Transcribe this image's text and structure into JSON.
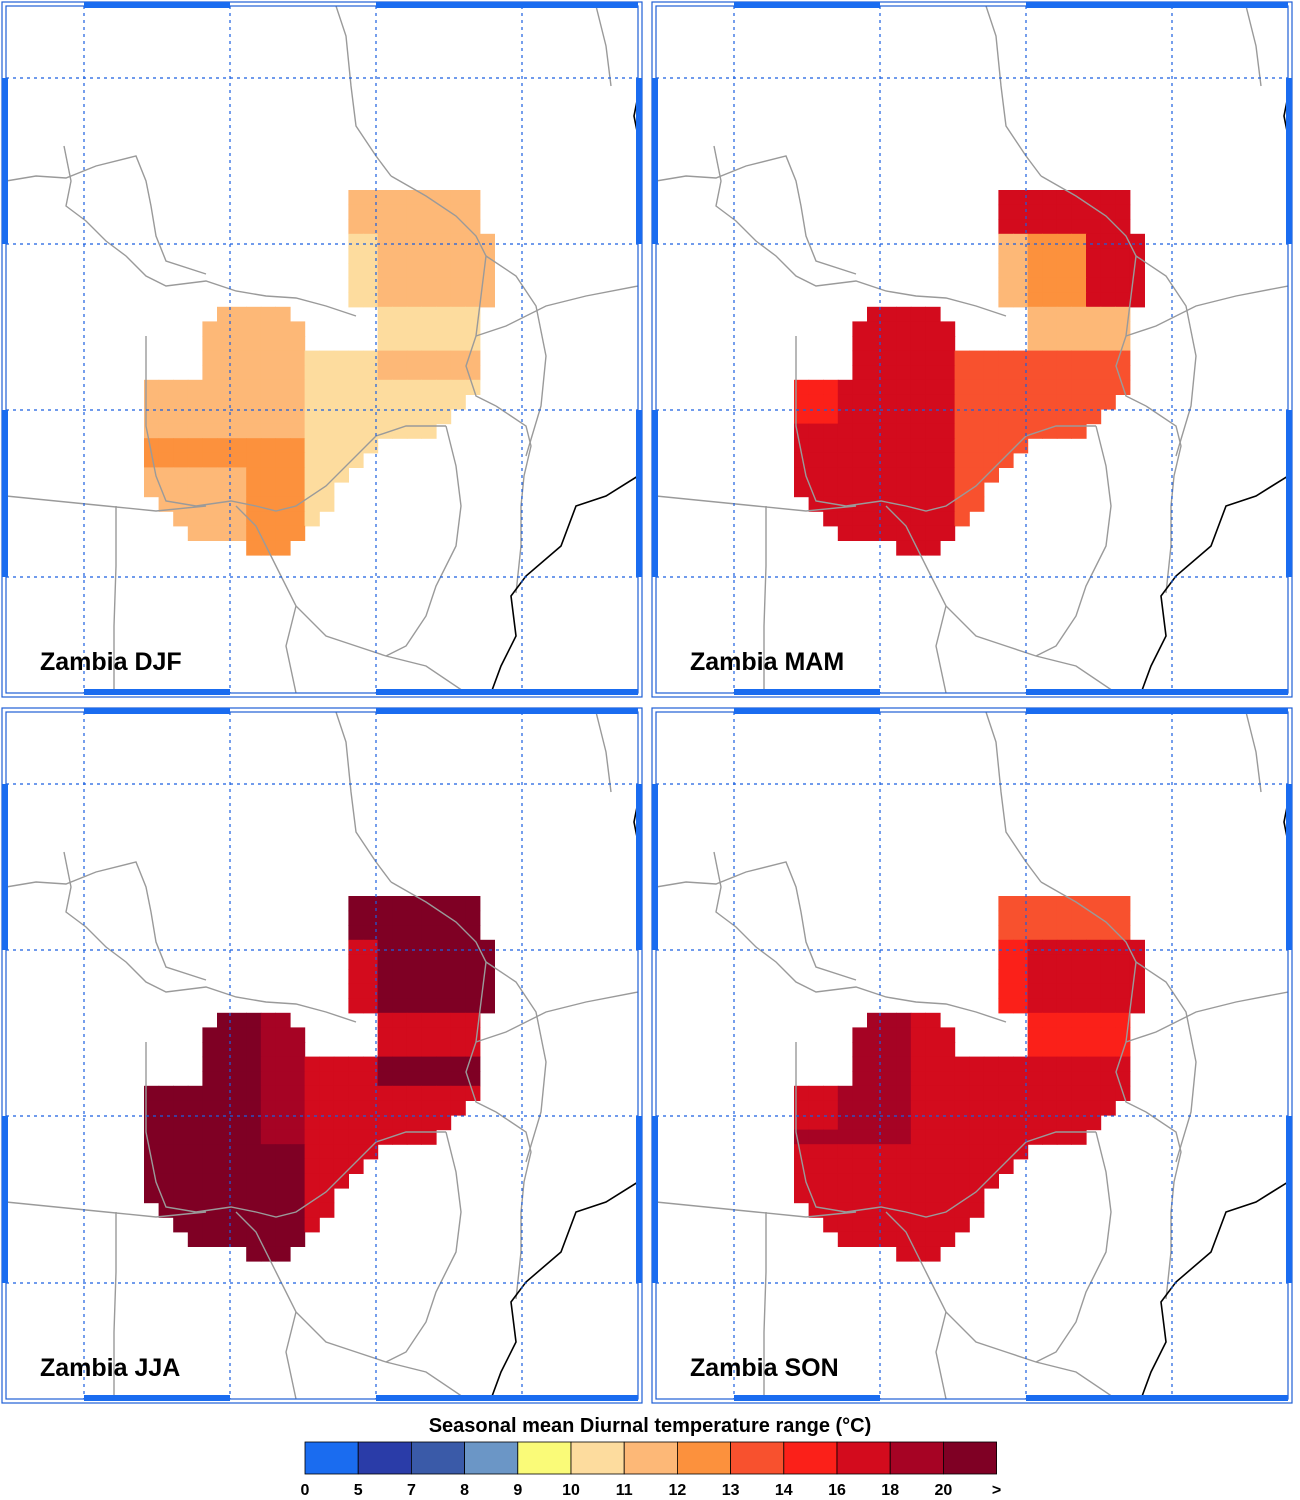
{
  "colors": {
    "frame_outer": "#1f5fd6",
    "frame_inner": "#1f5fd6",
    "frame_bar": "#1a6cf0",
    "gridline": "#1a5fe0",
    "border": "#9a9a9a",
    "coast": "#000000"
  },
  "panels": [
    {
      "id": "djf",
      "label": "Zambia DJF"
    },
    {
      "id": "mam",
      "label": "Zambia MAM"
    },
    {
      "id": "jja",
      "label": "Zambia JJA"
    },
    {
      "id": "son",
      "label": "Zambia SON"
    }
  ],
  "legend": {
    "title": "Seasonal mean Diurnal temperature range (°C)",
    "ticks": [
      "0",
      "5",
      "7",
      "8",
      "9",
      "10",
      "11",
      "12",
      "13",
      "14",
      "16",
      "18",
      "20",
      ">"
    ],
    "bins": [
      {
        "from": "0",
        "to": "5",
        "color": "#1a6cf0"
      },
      {
        "from": "5",
        "to": "7",
        "color": "#2a3ca8"
      },
      {
        "from": "7",
        "to": "8",
        "color": "#3a5aa8"
      },
      {
        "from": "8",
        "to": "9",
        "color": "#6b96c6"
      },
      {
        "from": "9",
        "to": "10",
        "color": "#fafb78"
      },
      {
        "from": "10",
        "to": "11",
        "color": "#fddc9e"
      },
      {
        "from": "11",
        "to": "12",
        "color": "#fdb877"
      },
      {
        "from": "12",
        "to": "13",
        "color": "#fc913d"
      },
      {
        "from": "13",
        "to": "14",
        "color": "#f8512e"
      },
      {
        "from": "14",
        "to": "16",
        "color": "#fb2019"
      },
      {
        "from": "16",
        "to": "18",
        "color": "#d30b1d"
      },
      {
        "from": "18",
        "to": "20",
        "color": "#a60324"
      },
      {
        "from": "20",
        "to": ">",
        "color": "#7f0024"
      }
    ]
  },
  "field": {
    "djf": {
      "base": 6,
      "regions": [
        {
          "zone": "ne",
          "level": 5
        },
        {
          "zone": "se",
          "level": 5
        },
        {
          "zone": "w",
          "level": 6
        },
        {
          "zone": "sw",
          "level": 7
        }
      ]
    },
    "mam": {
      "base": 10,
      "regions": [
        {
          "zone": "ne",
          "level": 6
        },
        {
          "zone": "ne_mid",
          "level": 7
        },
        {
          "zone": "ne_s",
          "level": 8
        },
        {
          "zone": "se",
          "level": 8
        },
        {
          "zone": "w",
          "level": 10
        },
        {
          "zone": "nw_edge",
          "level": 9
        }
      ]
    },
    "jja": {
      "base": 12,
      "regions": [
        {
          "zone": "ne",
          "level": 10
        },
        {
          "zone": "se",
          "level": 10
        },
        {
          "zone": "w",
          "level": 12
        },
        {
          "zone": "east_w",
          "level": 11
        }
      ]
    },
    "son": {
      "base": 10,
      "regions": [
        {
          "zone": "ne",
          "level": 9
        },
        {
          "zone": "ne_top",
          "level": 8
        },
        {
          "zone": "ne_e",
          "level": 10
        },
        {
          "zone": "se",
          "level": 10
        },
        {
          "zone": "w",
          "level": 11
        },
        {
          "zone": "sw_s",
          "level": 10
        }
      ]
    }
  }
}
